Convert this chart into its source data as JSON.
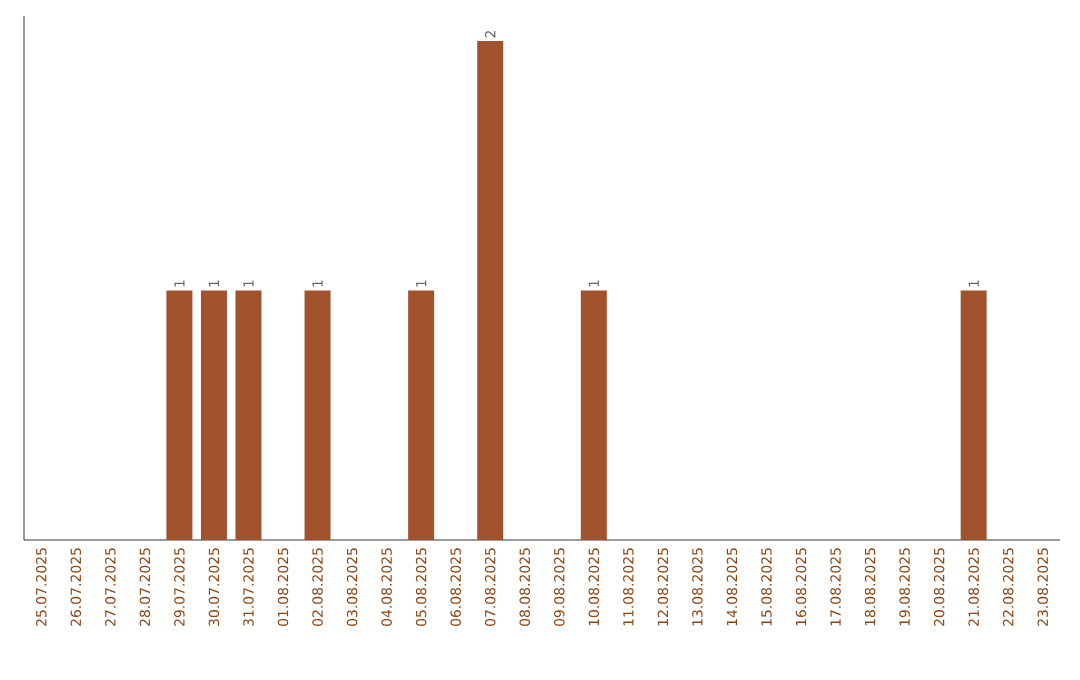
{
  "chart_data": {
    "type": "bar",
    "categories": [
      "25.07.2025",
      "26.07.2025",
      "27.07.2025",
      "28.07.2025",
      "29.07.2025",
      "30.07.2025",
      "31.07.2025",
      "01.08.2025",
      "02.08.2025",
      "03.08.2025",
      "04.08.2025",
      "05.08.2025",
      "06.08.2025",
      "07.08.2025",
      "08.08.2025",
      "09.08.2025",
      "10.08.2025",
      "11.08.2025",
      "12.08.2025",
      "13.08.2025",
      "14.08.2025",
      "15.08.2025",
      "16.08.2025",
      "17.08.2025",
      "18.08.2025",
      "19.08.2025",
      "20.08.2025",
      "21.08.2025",
      "22.08.2025",
      "23.08.2025"
    ],
    "values": [
      0,
      0,
      0,
      0,
      1,
      1,
      1,
      0,
      1,
      0,
      0,
      1,
      0,
      2,
      0,
      0,
      1,
      0,
      0,
      0,
      0,
      0,
      0,
      0,
      0,
      0,
      0,
      1,
      0,
      0
    ],
    "value_labels": [
      null,
      null,
      null,
      null,
      "1",
      "1",
      "1",
      null,
      "1",
      null,
      null,
      "1",
      null,
      "2",
      null,
      null,
      "1",
      null,
      null,
      null,
      null,
      null,
      null,
      null,
      null,
      null,
      null,
      "1",
      null,
      null
    ],
    "color": "#a0522d",
    "ylim": [
      0,
      2.1
    ],
    "tick_labels": "x"
  }
}
